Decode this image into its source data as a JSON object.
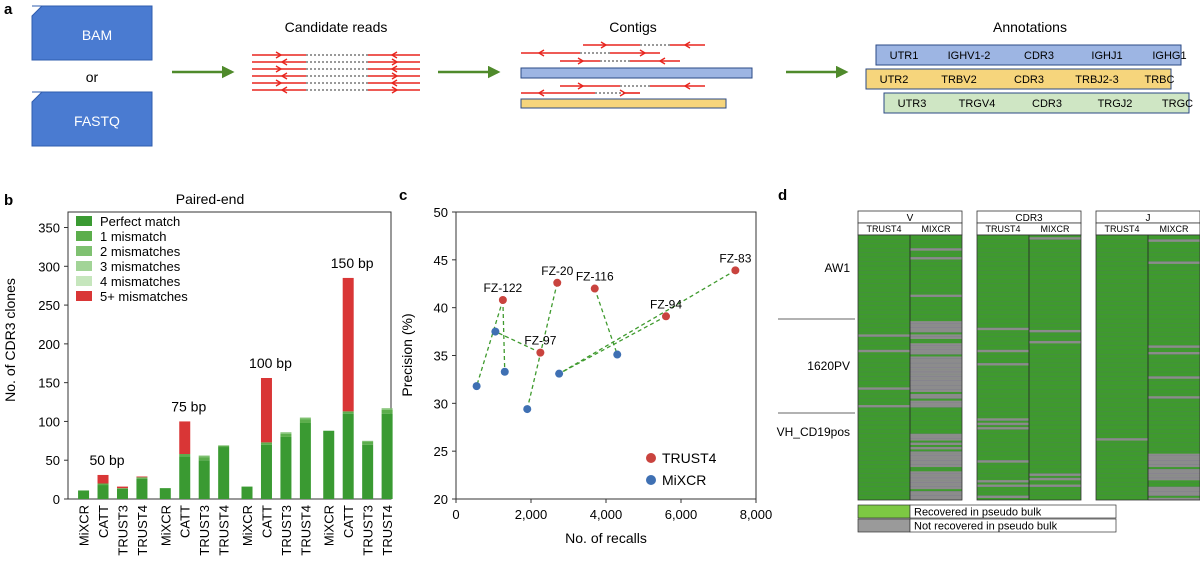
{
  "panel_labels": {
    "a": "a",
    "b": "b",
    "c": "c",
    "d": "d"
  },
  "panel_a": {
    "bam": "BAM",
    "or": "or",
    "fastq": "FASTQ",
    "candidate_reads": "Candidate reads",
    "contigs": "Contigs",
    "annotations": "Annotations",
    "rows": [
      {
        "cells": [
          "UTR1",
          "IGHV1-2",
          "CDR3",
          "IGHJ1",
          "IGHG1"
        ],
        "color": "#9db5e3"
      },
      {
        "cells": [
          "UTR2",
          "TRBV2",
          "CDR3",
          "TRBJ2-3",
          "TRBC"
        ],
        "color": "#f6d57c"
      },
      {
        "cells": [
          "UTR3",
          "TRGV4",
          "CDR3",
          "TRGJ2",
          "TRGC"
        ],
        "color": "#cfe6c4"
      }
    ],
    "colors": {
      "box_blue": "#4a7bd1",
      "arrow_green": "#4f8a2b",
      "read_red": "#e8251e"
    }
  },
  "chart_data": [
    {
      "type": "bar",
      "stacked": true,
      "title": "Paired-end",
      "ylabel": "No. of CDR3 clones",
      "ylim": [
        0,
        370
      ],
      "yticks": [
        "0",
        "50",
        "100",
        "150",
        "200",
        "250",
        "300",
        "350"
      ],
      "groups": [
        {
          "label": "50 bp",
          "categories": [
            "MiXCR",
            "CATT",
            "TRUST3",
            "TRUST4"
          ]
        },
        {
          "label": "75 bp",
          "categories": [
            "MiXCR",
            "CATT",
            "TRUST3",
            "TRUST4"
          ]
        },
        {
          "label": "100 bp",
          "categories": [
            "MiXCR",
            "CATT",
            "TRUST3",
            "TRUST4"
          ]
        },
        {
          "label": "150 bp",
          "categories": [
            "MiXCR",
            "CATT",
            "TRUST3",
            "TRUST4"
          ]
        }
      ],
      "series": [
        {
          "name": "Perfect match",
          "color": "#3a9a32",
          "values": [
            11,
            18,
            13,
            26,
            14,
            55,
            50,
            67,
            16,
            70,
            80,
            98,
            88,
            110,
            70,
            110
          ]
        },
        {
          "name": "1 mismatch",
          "color": "#5cae4c",
          "values": [
            0,
            2,
            1,
            2,
            0,
            3,
            4,
            2,
            0,
            3,
            4,
            5,
            0,
            3,
            4,
            5
          ]
        },
        {
          "name": "2 mismatches",
          "color": "#7fc171",
          "values": [
            0,
            0,
            0,
            0,
            0,
            0,
            2,
            0,
            0,
            0,
            2,
            2,
            0,
            0,
            1,
            2
          ]
        },
        {
          "name": "3 mismatches",
          "color": "#a2d497",
          "values": [
            0,
            0,
            0,
            0,
            0,
            0,
            0,
            0,
            0,
            0,
            0,
            0,
            0,
            0,
            0,
            0
          ]
        },
        {
          "name": "4 mismatches",
          "color": "#c6e6bd",
          "values": [
            0,
            0,
            0,
            0,
            0,
            0,
            0,
            0,
            0,
            0,
            0,
            0,
            0,
            0,
            0,
            0
          ]
        },
        {
          "name": "5+ mismatches",
          "color": "#d93636",
          "values": [
            0,
            11,
            2,
            1,
            0,
            42,
            0,
            0,
            0,
            83,
            0,
            0,
            0,
            172,
            0,
            0
          ]
        }
      ]
    },
    {
      "type": "scatter",
      "xlabel": "No. of recalls",
      "ylabel": "Precision (%)",
      "xlim": [
        0,
        8000
      ],
      "ylim": [
        20,
        50
      ],
      "xticks": [
        0,
        2000,
        4000,
        6000,
        8000
      ],
      "xtick_labels": [
        "0",
        "2,000",
        "4,000",
        "6,000",
        "8,000"
      ],
      "yticks": [
        20,
        25,
        30,
        35,
        40,
        45,
        50
      ],
      "series": [
        {
          "name": "TRUST4",
          "color": "#c9433e",
          "points": [
            [
              1250,
              40.8
            ],
            [
              2700,
              42.6
            ],
            [
              3700,
              42.0
            ],
            [
              7450,
              43.9
            ],
            [
              5600,
              39.1
            ],
            [
              2250,
              35.3
            ]
          ],
          "labels": [
            "FZ-122",
            "FZ-20",
            "FZ-116",
            "FZ-83",
            "FZ-94",
            "FZ-97"
          ]
        },
        {
          "name": "MiXCR",
          "color": "#3f70b3",
          "points": [
            [
              1300,
              33.3
            ],
            [
              1900,
              29.4
            ],
            [
              4300,
              35.1
            ],
            [
              2750,
              33.1
            ],
            [
              1050,
              37.5
            ],
            [
              550,
              31.8
            ]
          ]
        }
      ],
      "pairs": [
        [
          0,
          0
        ],
        [
          1,
          1
        ],
        [
          2,
          2
        ],
        [
          3,
          3
        ],
        [
          4,
          3
        ],
        [
          5,
          4
        ],
        [
          0,
          5
        ]
      ]
    }
  ],
  "panel_d": {
    "groups": [
      {
        "title": "V",
        "cols": [
          "TRUST4",
          "MIXCR"
        ]
      },
      {
        "title": "CDR3",
        "cols": [
          "TRUST4",
          "MIXCR"
        ]
      },
      {
        "title": "J",
        "cols": [
          "TRUST4",
          "MIXCR"
        ]
      }
    ],
    "samples": [
      "AW1",
      "1620PV",
      "VH_CD19pos"
    ],
    "legend": [
      "Recovered in pseudo bulk",
      "Not recovered in pseudo bulk"
    ],
    "colors": {
      "recovered": "#7dc843",
      "not_recovered": "#9a9a9a",
      "heat_green": "#3f9a2e",
      "heat_gray": "#8c8c8c"
    }
  }
}
